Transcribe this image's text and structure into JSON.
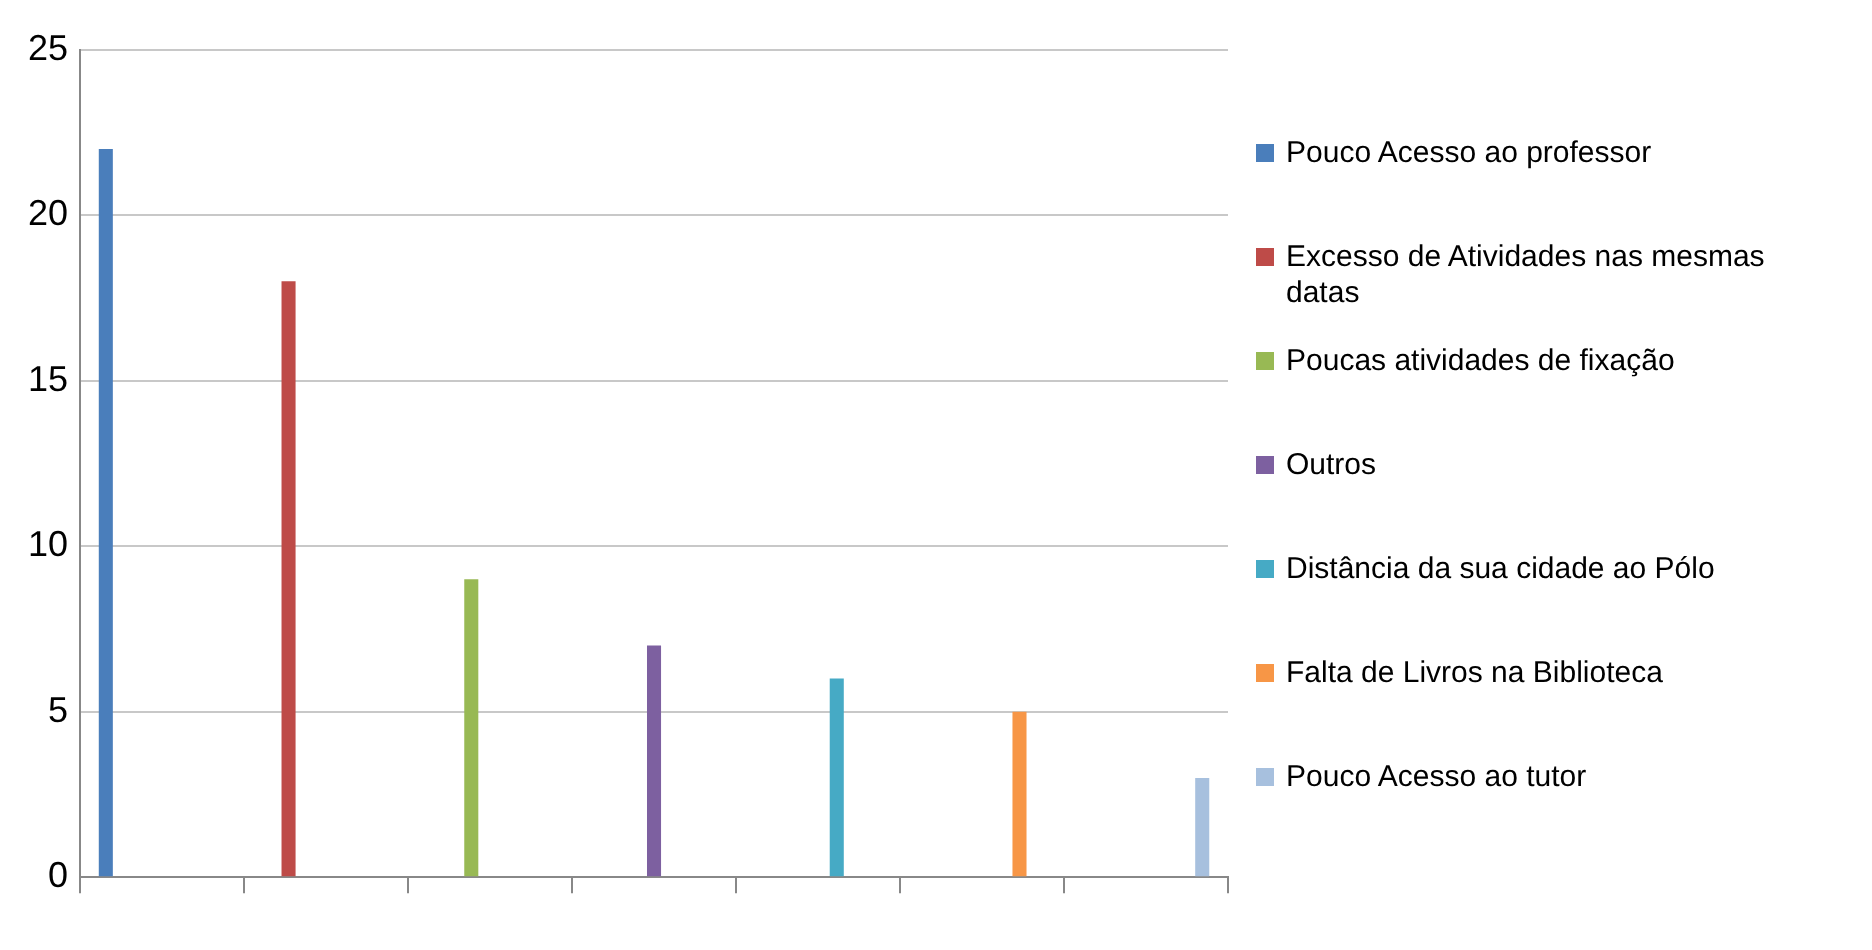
{
  "chart_data": {
    "type": "bar",
    "categories": [
      null,
      null,
      null,
      null,
      null,
      null,
      null
    ],
    "series": [
      {
        "name": "Pouco Acesso ao professor",
        "color": "#4a7ebb",
        "values": [
          22,
          null,
          null,
          null,
          null,
          null,
          null
        ]
      },
      {
        "name": "Excesso de Atividades nas mesmas datas",
        "color": "#be4b48",
        "values": [
          null,
          18,
          null,
          null,
          null,
          null,
          null
        ]
      },
      {
        "name": "Poucas atividades de fixação",
        "color": "#98b954",
        "values": [
          null,
          null,
          9,
          null,
          null,
          null,
          null
        ]
      },
      {
        "name": "Outros",
        "color": "#7d60a0",
        "values": [
          null,
          null,
          null,
          7,
          null,
          null,
          null
        ]
      },
      {
        "name": "Distância da sua cidade ao Pólo",
        "color": "#46aac5",
        "values": [
          null,
          null,
          null,
          null,
          6,
          null,
          null
        ]
      },
      {
        "name": "Falta de Livros na Biblioteca",
        "color": "#f79646",
        "values": [
          null,
          null,
          null,
          null,
          null,
          5,
          null
        ]
      },
      {
        "name": "Pouco Acesso ao tutor",
        "color": "#a7c0de",
        "values": [
          null,
          null,
          null,
          null,
          null,
          null,
          3
        ]
      }
    ],
    "ylim": [
      0,
      25
    ],
    "yticks": [
      0,
      5,
      10,
      15,
      20,
      25
    ],
    "grid": "y",
    "legend": "right"
  }
}
